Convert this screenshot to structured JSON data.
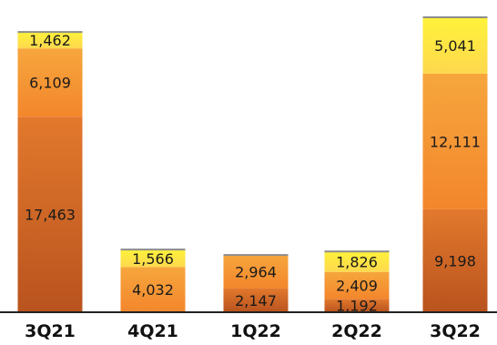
{
  "chart_data": {
    "type": "bar",
    "stacked": true,
    "categories": [
      "3Q21",
      "4Q21",
      "1Q22",
      "2Q22",
      "3Q22"
    ],
    "series": [
      {
        "values": [
          17463,
          0,
          2147,
          1192,
          9198
        ]
      },
      {
        "values": [
          6109,
          4032,
          2964,
          2409,
          12111
        ]
      },
      {
        "values": [
          1462,
          1566,
          0,
          1826,
          5041
        ]
      }
    ],
    "segment_labels": [
      [
        "17,463",
        "",
        "2,147",
        "1,192",
        "9,198"
      ],
      [
        "6,109",
        "4,032",
        "2,964",
        "2,409",
        "12,111"
      ],
      [
        "1,462",
        "1,566",
        "",
        "1,826",
        "5,041"
      ]
    ],
    "ylim": [
      0,
      26350
    ],
    "colors": {
      "bottom": [
        "#e2792d",
        "#b9531e"
      ],
      "middle": [
        "#f6a63d",
        "#f3862c"
      ],
      "top": [
        "#fff23a",
        "#fdd84e"
      ],
      "axis": "#222222"
    }
  }
}
